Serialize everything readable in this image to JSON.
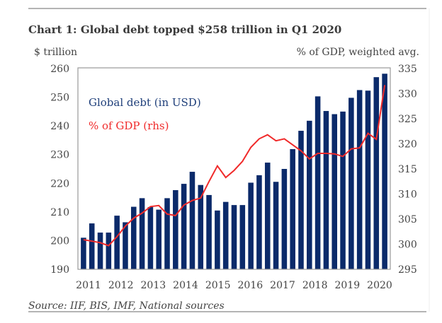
{
  "chart_data": {
    "type": "bar+line",
    "title": "Chart 1: Global debt topped $258 trillion in Q1 2020",
    "ylabel_left": "$ trillion",
    "ylabel_right": "% of GDP, weighted avg.",
    "ylim_left": [
      190,
      260
    ],
    "ylim_right": [
      295,
      335
    ],
    "yticks_left": [
      "190",
      "200",
      "210",
      "220",
      "230",
      "240",
      "250",
      "260"
    ],
    "yticks_right": [
      "295",
      "300",
      "305",
      "310",
      "315",
      "320",
      "325",
      "330",
      "335"
    ],
    "xticks": [
      "2011",
      "2012",
      "2013",
      "2014",
      "2015",
      "2016",
      "2017",
      "2018",
      "2019",
      "2020"
    ],
    "grid": false,
    "legend_placement": "top-left",
    "series": [
      {
        "name": "Global debt (in USD)",
        "type": "bar",
        "axis": "left",
        "color": "#0b2a6a",
        "values": [
          201,
          206,
          202.8,
          202.8,
          208.7,
          206.4,
          211.8,
          214.8,
          211.7,
          210.8,
          214.8,
          217.6,
          219.8,
          224,
          219.4,
          215.9,
          210.5,
          213.5,
          212.4,
          212.4,
          220.2,
          222.8,
          227.2,
          220.5,
          225,
          231.9,
          238.3,
          241.8,
          250.3,
          245.2,
          244.1,
          245,
          249.8,
          252.5,
          252.3,
          257,
          258.2
        ]
      },
      {
        "name": "% of GDP (rhs)",
        "type": "line",
        "axis": "right",
        "color": "#f02a2a",
        "values": [
          300.9,
          300.6,
          300.3,
          299.7,
          301.5,
          303.6,
          305.2,
          306.2,
          307.5,
          307.7,
          306,
          305.7,
          307.8,
          308.7,
          309.2,
          312.5,
          315.6,
          313.3,
          314.7,
          316.5,
          319.3,
          321,
          321.8,
          320.6,
          321,
          319.8,
          318.6,
          317,
          318.1,
          318.1,
          318,
          317.5,
          319,
          319.2,
          322.1,
          320.9,
          331.7
        ]
      }
    ],
    "source": "Source: IIF, BIS, IMF, National sources"
  }
}
